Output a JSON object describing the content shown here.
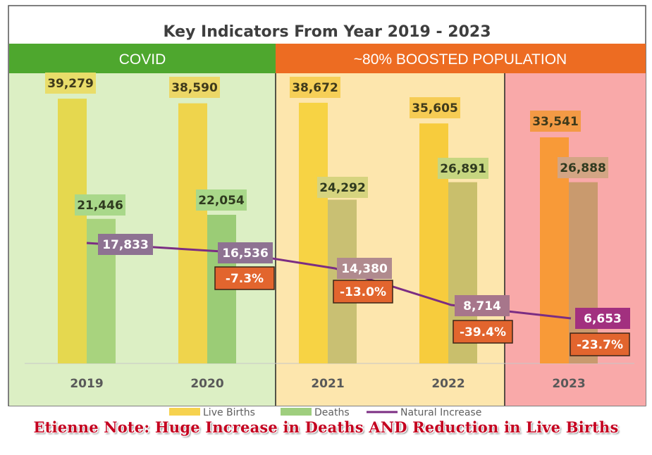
{
  "chart_data": {
    "type": "bar",
    "title": "Key Indicators From Year 2019 - 2023",
    "categories": [
      "2019",
      "2020",
      "2021",
      "2022",
      "2023"
    ],
    "series": [
      {
        "name": "Live Births",
        "values": [
          39279,
          38590,
          38672,
          35605,
          33541
        ],
        "labels": [
          "39,279",
          "38,590",
          "38,672",
          "35,605",
          "33,541"
        ]
      },
      {
        "name": "Deaths",
        "values": [
          21446,
          22054,
          24292,
          26891,
          26888
        ],
        "labels": [
          "21,446",
          "22,054",
          "24,292",
          "26,891",
          "26,888"
        ]
      },
      {
        "name": "Natural Increase",
        "type": "line",
        "values": [
          17833,
          16536,
          14380,
          8714,
          6653
        ],
        "labels": [
          "17,833",
          "16,536",
          "14,380",
          "8,714",
          "6,653"
        ]
      }
    ],
    "change_labels": [
      "-7.3%",
      "-13.0%",
      "-39.4%",
      "-23.7%"
    ],
    "bands": [
      {
        "label": "COVID",
        "years": [
          "2019",
          "2020"
        ]
      },
      {
        "label": "~80% BOOSTED POPULATION",
        "years": [
          "2021",
          "2022",
          "2023"
        ]
      }
    ],
    "ylim": [
      0,
      40000
    ],
    "grid": false,
    "legend": "bottom"
  },
  "colors": {
    "covid_header": "#4ea72e",
    "boosted_header": "#ed6c22",
    "covid_bg": "#dcefc4",
    "boosted_bg": "#fde6ad",
    "year2023_bg": "#f9a9a9",
    "births": "#eed347",
    "deaths": "#97cd77",
    "line": "#7b2d83",
    "change_box": "#e2652e",
    "ni_box": "#8e7292"
  },
  "note": "Etienne Note: Huge Increase in Deaths AND Reduction in Live Births"
}
